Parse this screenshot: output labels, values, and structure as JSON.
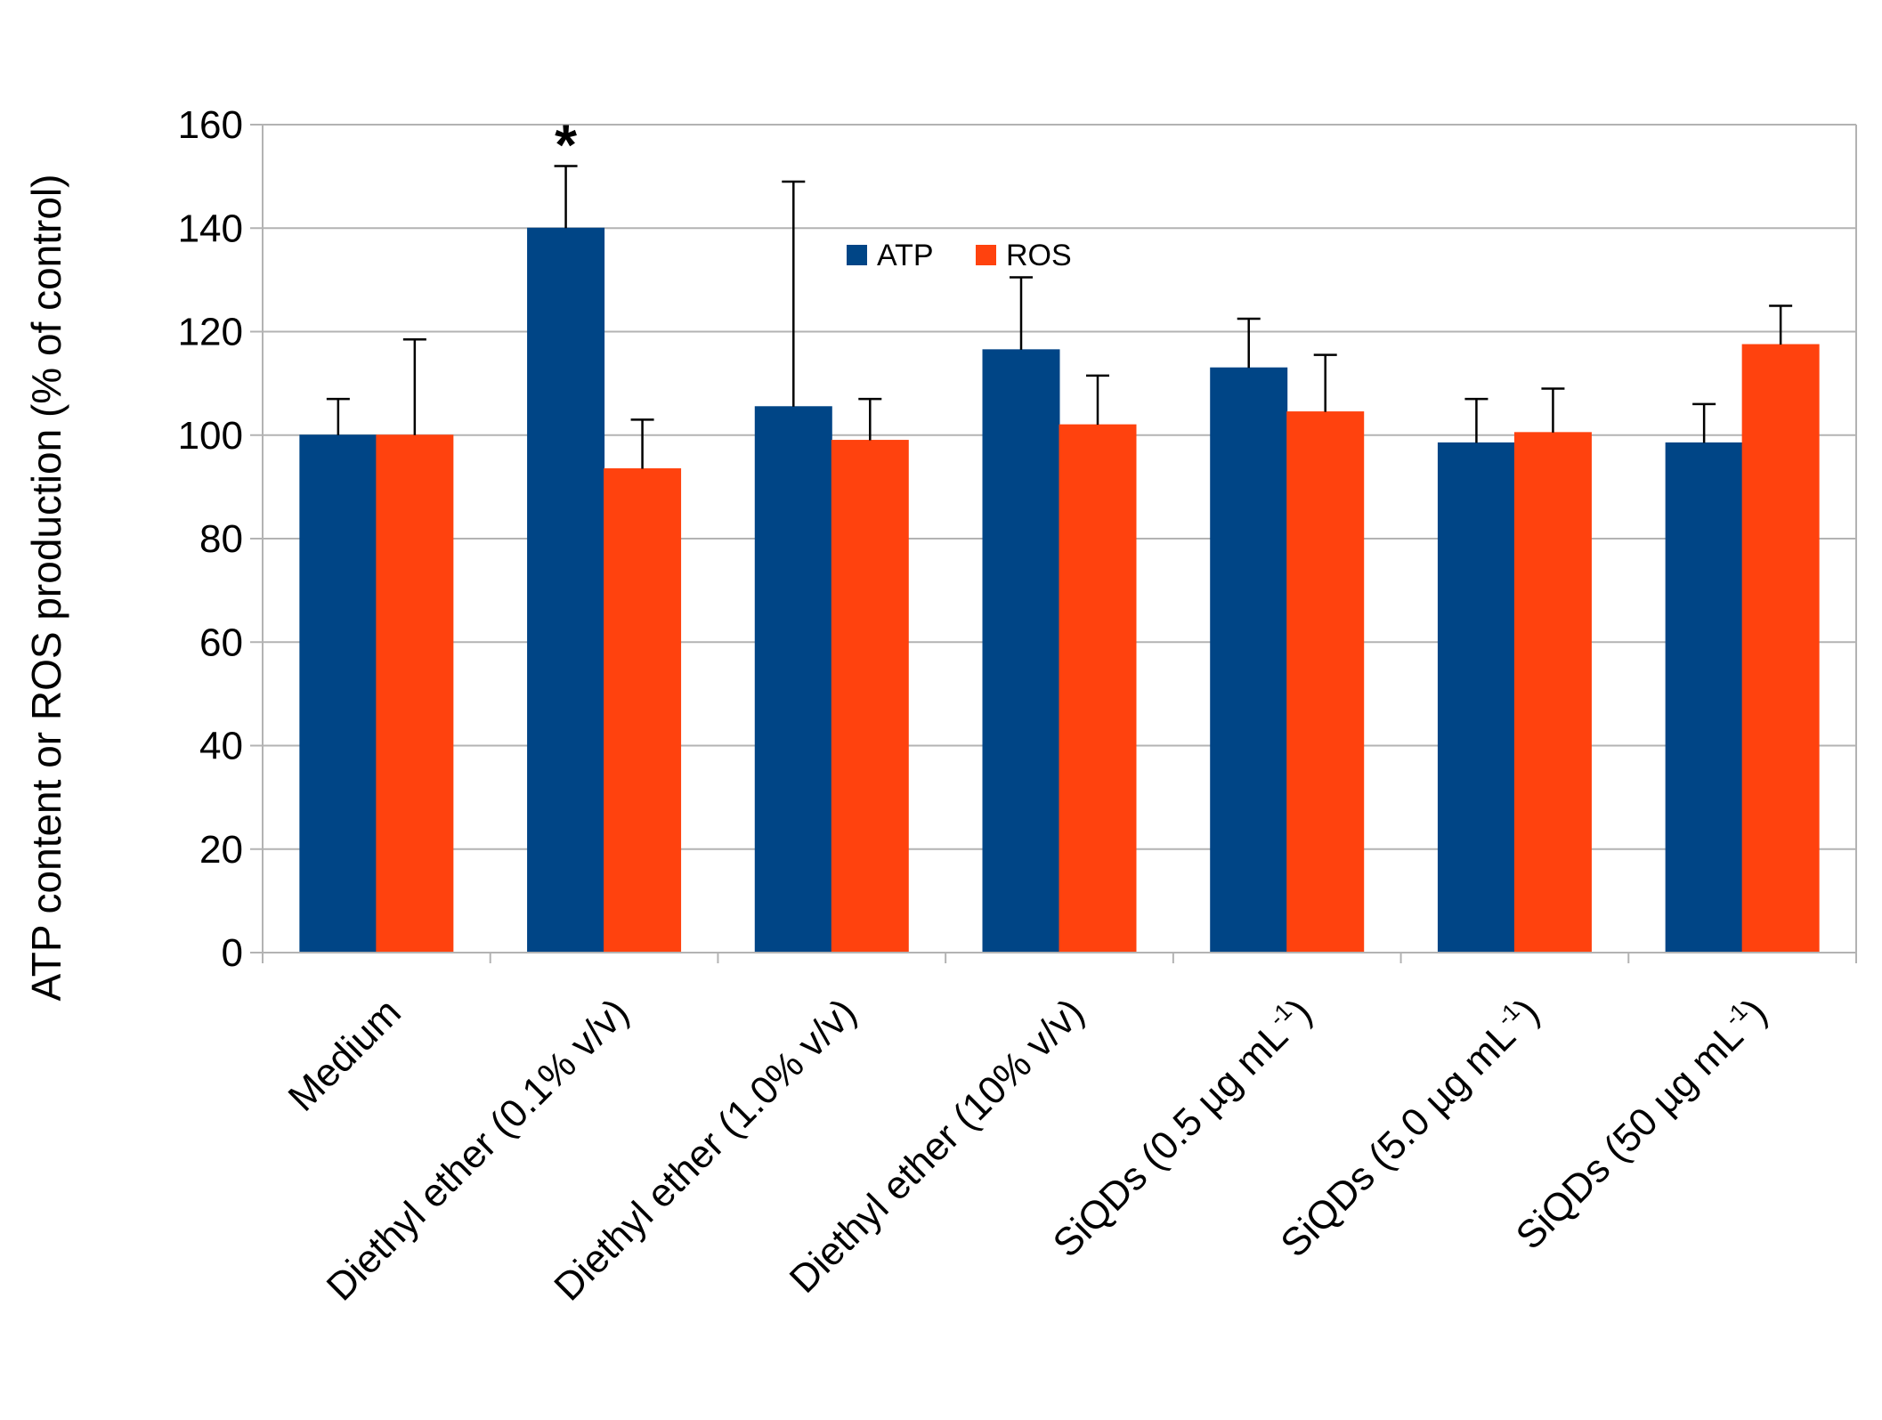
{
  "chart_data": {
    "type": "bar",
    "title": "",
    "xlabel": "",
    "ylabel": "ATP content or ROS production (% of control)",
    "ylim": [
      0,
      160
    ],
    "yticks": [
      0,
      20,
      40,
      60,
      80,
      100,
      120,
      140,
      160
    ],
    "grid": true,
    "legend_position": "top-center",
    "categories": [
      {
        "label": "Medium",
        "sup": "",
        "suffix": ""
      },
      {
        "label": "Diethyl ether (0.1% v/v)",
        "sup": "",
        "suffix": ""
      },
      {
        "label": "Diethyl ether (1.0% v/v)",
        "sup": "",
        "suffix": ""
      },
      {
        "label": "Diethyl ether (10% v/v)",
        "sup": "",
        "suffix": ""
      },
      {
        "label": "SiQDs (0.5 µg mL",
        "sup": "-1",
        "suffix": ")"
      },
      {
        "label": "SiQDs (5.0 µg mL",
        "sup": "-1",
        "suffix": ")"
      },
      {
        "label": "SiQDs (50 µg mL",
        "sup": "-1",
        "suffix": ")"
      }
    ],
    "series": [
      {
        "name": "ATP",
        "color": "#004586",
        "values": [
          100,
          140,
          105.5,
          116.5,
          113,
          98.5,
          98.5
        ],
        "errors": [
          7,
          12,
          43.5,
          14,
          9.5,
          8.5,
          7.5
        ]
      },
      {
        "name": "ROS",
        "color": "#ff420e",
        "values": [
          100,
          93.5,
          99,
          102,
          104.5,
          100.5,
          117.5
        ],
        "errors": [
          18.5,
          9.5,
          8,
          9.5,
          11,
          8.5,
          7.5
        ]
      }
    ],
    "annotations": [
      {
        "text": "*",
        "category_index": 1,
        "series": "ATP"
      }
    ]
  }
}
